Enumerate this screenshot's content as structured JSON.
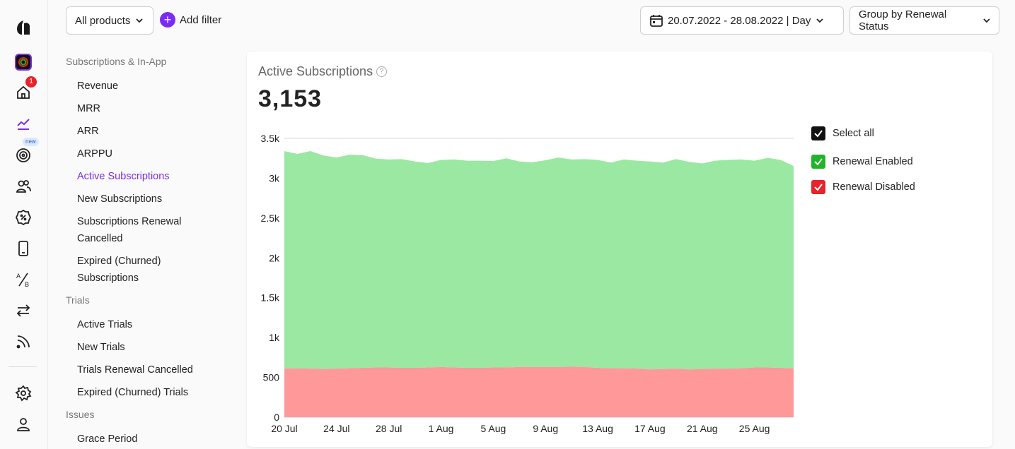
{
  "rail": {
    "home_badge": "1",
    "goals_badge": "new"
  },
  "topbar": {
    "products_label": "All products",
    "add_filter_label": "Add filter",
    "date_range_label": "20.07.2022 - 28.08.2022 | Day",
    "group_by_label": "Group by Renewal Status"
  },
  "nav": {
    "sections": [
      {
        "title": "Subscriptions & In-App",
        "items": [
          "Revenue",
          "MRR",
          "ARR",
          "ARPPU",
          "Active Subscriptions",
          "New Subscriptions",
          "Subscriptions Renewal Cancelled",
          "Expired (Churned) Subscriptions"
        ]
      },
      {
        "title": "Trials",
        "items": [
          "Active Trials",
          "New Trials",
          "Trials Renewal Cancelled",
          "Expired (Churned) Trials"
        ]
      },
      {
        "title": "Issues",
        "items": [
          "Grace Period"
        ]
      }
    ],
    "active_item": "Active Subscriptions"
  },
  "card": {
    "title": "Active Subscriptions",
    "total": "3,153"
  },
  "legend": {
    "select_all": "Select all",
    "enabled": "Renewal Enabled",
    "disabled": "Renewal Disabled"
  },
  "colors": {
    "accent": "#7b2cf0",
    "enabled_fill": "#9ae8a2",
    "disabled_fill": "#ff9898",
    "enabled_check": "#20b429",
    "disabled_check": "#e5242b"
  },
  "chart_data": {
    "type": "area",
    "stacked": true,
    "ylim": [
      0,
      3500
    ],
    "y_ticks": [
      "0",
      "500",
      "1k",
      "1.5k",
      "2k",
      "2.5k",
      "3k",
      "3.5k"
    ],
    "x_ticks": [
      "20 Jul",
      "24 Jul",
      "28 Jul",
      "1 Aug",
      "5 Aug",
      "9 Aug",
      "13 Aug",
      "17 Aug",
      "21 Aug",
      "25 Aug"
    ],
    "x_start": "2022-07-20",
    "x_end": "2022-08-28",
    "grid": true,
    "series": [
      {
        "name": "Renewal Disabled",
        "values": [
          610,
          615,
          610,
          605,
          610,
          615,
          620,
          625,
          625,
          620,
          620,
          625,
          630,
          625,
          620,
          620,
          625,
          625,
          630,
          630,
          630,
          630,
          635,
          630,
          620,
          615,
          615,
          610,
          600,
          605,
          610,
          600,
          605,
          610,
          610,
          615,
          625,
          625,
          620,
          615
        ]
      },
      {
        "name": "Renewal Enabled",
        "values": [
          2730,
          2690,
          2730,
          2680,
          2650,
          2680,
          2670,
          2620,
          2610,
          2620,
          2590,
          2565,
          2600,
          2610,
          2600,
          2600,
          2590,
          2625,
          2580,
          2570,
          2595,
          2630,
          2600,
          2610,
          2610,
          2580,
          2620,
          2610,
          2610,
          2590,
          2630,
          2605,
          2580,
          2610,
          2620,
          2620,
          2595,
          2630,
          2610,
          2538
        ]
      }
    ]
  }
}
